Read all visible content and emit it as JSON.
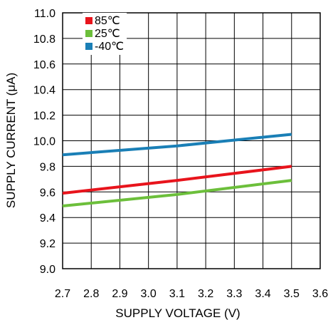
{
  "chart_data": {
    "type": "line",
    "xlabel": "SUPPLY VOLTAGE (V)",
    "ylabel": "SUPPLY CURRENT (μA)",
    "xlim": [
      2.7,
      3.5
    ],
    "ylim": [
      9.0,
      11.0
    ],
    "x_ticks": [
      "2.7",
      "2.8",
      "2.9",
      "3.0",
      "3.1",
      "3.2",
      "3.3",
      "3.4",
      "3.5",
      "3.6"
    ],
    "y_ticks": [
      "11.0",
      "10.8",
      "10.6",
      "10.4",
      "10.2",
      "10.0",
      "9.8",
      "9.6",
      "9.4",
      "9.2",
      "9.0"
    ],
    "grid": true,
    "legend_position": "top-left",
    "series": [
      {
        "name": "85℃",
        "color": "#e8141c",
        "x": [
          2.7,
          3.1,
          3.5
        ],
        "y": [
          9.59,
          9.69,
          9.8
        ]
      },
      {
        "name": "25℃",
        "color": "#6cbf3b",
        "x": [
          2.7,
          3.1,
          3.5
        ],
        "y": [
          9.49,
          9.58,
          9.69
        ]
      },
      {
        "name": "-40℃",
        "color": "#1a7fb6",
        "x": [
          2.7,
          3.1,
          3.5
        ],
        "y": [
          9.89,
          9.96,
          10.05
        ]
      }
    ]
  }
}
